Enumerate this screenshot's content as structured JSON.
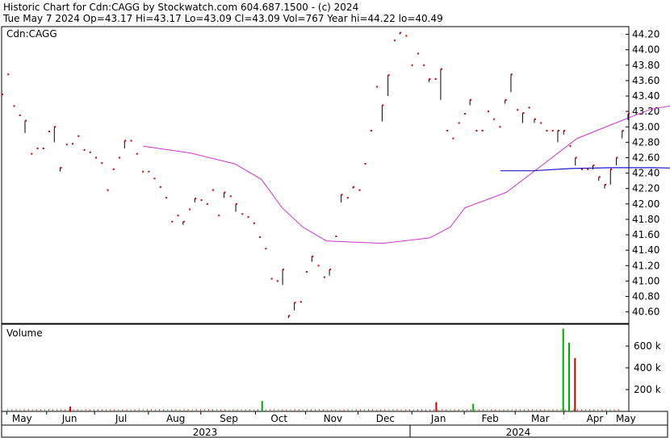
{
  "header": {
    "line1": "Historic Chart for Cdn:CAGG by Stockwatch.com 604.687.1500 - (c) 2024",
    "line2": "Tue May  7 2024  Op=43.17  Hi=43.17  Lo=43.09  Cl=43.09  Vol=767  Year hi=44.22  lo=40.49"
  },
  "colors": {
    "bar": "#cc0000",
    "ma_short": "#cc33cc",
    "ma_long": "#1a1acc",
    "vol_up": "#00aa00",
    "vol_down": "#cc0000",
    "grid": "#bbbbbb",
    "frame": "#000000"
  },
  "chart_data": [
    {
      "type": "line",
      "title": "Cdn:CAGG",
      "ylim": [
        40.45,
        44.3
      ],
      "y_ticks": [
        "40.60",
        "40.80",
        "41.00",
        "41.20",
        "41.40",
        "41.60",
        "41.80",
        "42.00",
        "42.20",
        "42.40",
        "42.60",
        "42.80",
        "43.00",
        "43.20",
        "43.40",
        "43.60",
        "43.80",
        "44.00",
        "44.20"
      ],
      "x_months": [
        "May",
        "Jun",
        "Jul",
        "Aug",
        "Sep",
        "Oct",
        "Nov",
        "Dec",
        "Jan",
        "Feb",
        "Mar",
        "Apr",
        "May"
      ],
      "x_years": [
        "2023",
        "2024"
      ],
      "price_ticks": [
        [
          43.42,
          43.42
        ],
        [
          43.68,
          43.68
        ],
        [
          43.27,
          43.27
        ],
        [
          43.15,
          43.15
        ],
        [
          42.92,
          43.08
        ],
        [
          42.65,
          42.65
        ],
        [
          42.72,
          42.72
        ],
        [
          42.72,
          42.72
        ],
        [
          42.94,
          42.94
        ],
        [
          42.8,
          43.0
        ],
        [
          42.42,
          42.47
        ],
        [
          42.77,
          42.77
        ],
        [
          42.78,
          42.78
        ],
        [
          42.88,
          42.88
        ],
        [
          42.7,
          42.7
        ],
        [
          42.67,
          42.67
        ],
        [
          42.6,
          42.6
        ],
        [
          42.53,
          42.53
        ],
        [
          42.18,
          42.18
        ],
        [
          42.45,
          42.45
        ],
        [
          42.6,
          42.6
        ],
        [
          42.72,
          42.82
        ],
        [
          42.82,
          42.82
        ],
        [
          42.65,
          42.65
        ],
        [
          42.42,
          42.42
        ],
        [
          42.42,
          42.42
        ],
        [
          42.33,
          42.33
        ],
        [
          42.22,
          42.22
        ],
        [
          42.08,
          42.08
        ],
        [
          41.77,
          41.77
        ],
        [
          41.85,
          41.85
        ],
        [
          41.73,
          41.77
        ],
        [
          41.93,
          41.93
        ],
        [
          42.02,
          42.07
        ],
        [
          42.05,
          42.05
        ],
        [
          42.0,
          42.0
        ],
        [
          42.18,
          42.18
        ],
        [
          41.85,
          41.85
        ],
        [
          42.08,
          42.15
        ],
        [
          42.1,
          42.1
        ],
        [
          41.9,
          42.0
        ],
        [
          41.87,
          41.87
        ],
        [
          41.83,
          41.83
        ],
        [
          41.75,
          41.75
        ],
        [
          41.57,
          41.57
        ],
        [
          41.42,
          41.42
        ],
        [
          41.03,
          41.03
        ],
        [
          41.0,
          41.0
        ],
        [
          40.95,
          41.15
        ],
        [
          40.52,
          40.55
        ],
        [
          40.62,
          40.72
        ],
        [
          40.73,
          40.73
        ],
        [
          41.12,
          41.12
        ],
        [
          41.25,
          41.32
        ],
        [
          41.2,
          41.2
        ],
        [
          41.05,
          41.05
        ],
        [
          41.07,
          41.15
        ],
        [
          41.58,
          41.58
        ],
        [
          42.02,
          42.12
        ],
        [
          42.08,
          42.08
        ],
        [
          42.2,
          42.22
        ],
        [
          42.18,
          42.18
        ],
        [
          42.52,
          42.52
        ],
        [
          42.95,
          42.95
        ],
        [
          43.52,
          43.52
        ],
        [
          43.07,
          43.28
        ],
        [
          43.4,
          43.67
        ],
        [
          44.12,
          44.12
        ],
        [
          44.2,
          44.22
        ],
        [
          44.18,
          44.18
        ],
        [
          43.8,
          43.8
        ],
        [
          43.95,
          43.95
        ],
        [
          43.8,
          43.8
        ],
        [
          43.58,
          43.62
        ],
        [
          43.62,
          43.62
        ],
        [
          43.35,
          43.75
        ],
        [
          42.95,
          42.95
        ],
        [
          42.85,
          42.85
        ],
        [
          43.05,
          43.05
        ],
        [
          43.17,
          43.17
        ],
        [
          43.28,
          43.35
        ],
        [
          42.95,
          42.95
        ],
        [
          42.95,
          42.95
        ],
        [
          43.2,
          43.2
        ],
        [
          43.1,
          43.1
        ],
        [
          43.0,
          43.0
        ],
        [
          43.3,
          43.35
        ],
        [
          43.45,
          43.68
        ],
        [
          43.22,
          43.22
        ],
        [
          43.05,
          43.18
        ],
        [
          43.25,
          43.25
        ],
        [
          43.05,
          43.1
        ],
        [
          43.05,
          43.05
        ],
        [
          42.95,
          42.95
        ],
        [
          42.95,
          42.95
        ],
        [
          42.8,
          42.95
        ],
        [
          42.9,
          42.95
        ],
        [
          42.75,
          42.75
        ],
        [
          42.5,
          42.6
        ],
        [
          42.45,
          42.45
        ],
        [
          42.45,
          42.45
        ],
        [
          42.45,
          42.5
        ],
        [
          42.3,
          42.35
        ],
        [
          42.2,
          42.25
        ],
        [
          42.25,
          42.45
        ],
        [
          42.5,
          42.6
        ],
        [
          42.85,
          42.95
        ],
        [
          43.09,
          43.17
        ]
      ],
      "ma_short": [
        [
          42.75,
          0.2259
        ],
        [
          42.66,
          0.3013
        ],
        [
          42.52,
          0.3719
        ],
        [
          42.32,
          0.4142
        ],
        [
          41.95,
          0.4472
        ],
        [
          41.7,
          0.4802
        ],
        [
          41.52,
          0.5179
        ],
        [
          41.49,
          0.6073
        ],
        [
          41.56,
          0.6826
        ],
        [
          41.7,
          0.7153
        ],
        [
          41.95,
          0.7388
        ],
        [
          42.15,
          0.8047
        ],
        [
          42.5,
          0.8612
        ],
        [
          42.85,
          0.9176
        ],
        [
          43.05,
          0.9788
        ],
        [
          43.23,
          1.0353
        ],
        [
          43.3,
          1.0871
        ],
        [
          43.1,
          1.1294
        ],
        [
          42.95,
          1.1718
        ],
        [
          42.9,
          1.2141
        ],
        [
          42.85,
          1.2659
        ],
        [
          42.82,
          1.2894
        ],
        [
          42.95,
          1.2988
        ],
        [
          43.1,
          1.3035
        ]
      ],
      "ma_long": [
        [
          42.43,
          0.7953
        ],
        [
          42.43,
          0.8471
        ],
        [
          42.46,
          0.9082
        ],
        [
          42.47,
          0.9741
        ],
        [
          42.47,
          1.04
        ],
        [
          42.46,
          1.1059
        ],
        [
          42.46,
          1.1718
        ],
        [
          42.46,
          1.2047
        ],
        [
          42.47,
          1.2282
        ],
        [
          42.48,
          1.2706
        ]
      ]
    },
    {
      "type": "bar",
      "title": "Volume",
      "ylim": [
        0,
        800
      ],
      "y_ticks": [
        "200 k",
        "400 k",
        "600 k"
      ],
      "volume_spikes": [
        {
          "x": 0.1082,
          "v": 45,
          "up": false
        },
        {
          "x": 0.4141,
          "v": 95,
          "up": true
        },
        {
          "x": 0.6917,
          "v": 85,
          "up": false
        },
        {
          "x": 0.7506,
          "v": 70,
          "up": true
        },
        {
          "x": 0.8941,
          "v": 760,
          "up": true
        },
        {
          "x": 0.9035,
          "v": 630,
          "up": true
        },
        {
          "x": 0.9129,
          "v": 490,
          "up": false
        }
      ]
    }
  ]
}
